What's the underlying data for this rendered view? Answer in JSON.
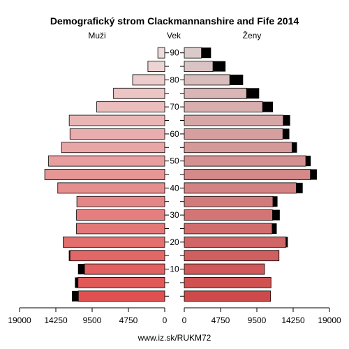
{
  "chart_data": {
    "type": "bar",
    "title": "Demografický strom Clackmannanshire and Fife 2014",
    "left_label": "Muži",
    "center_label": "Vek",
    "right_label": "Ženy",
    "footer": "www.iz.sk/RUKM72",
    "x_max": 19000,
    "x_ticks": [
      {
        "value": 19000,
        "label": "19000"
      },
      {
        "value": 14250,
        "label": "14250"
      },
      {
        "value": 9500,
        "label": "9500"
      },
      {
        "value": 4750,
        "label": "4750"
      },
      {
        "value": 0,
        "label": "0"
      }
    ],
    "age_groups": [
      "0-4",
      "5-9",
      "10-14",
      "15-19",
      "20-24",
      "25-29",
      "30-34",
      "35-39",
      "40-44",
      "45-49",
      "50-54",
      "55-59",
      "60-64",
      "65-69",
      "70-74",
      "75-79",
      "80-84",
      "85-89",
      "90+"
    ],
    "age_tick_labels": [
      {
        "index": 2,
        "label": "10"
      },
      {
        "index": 4,
        "label": "20"
      },
      {
        "index": 6,
        "label": "30"
      },
      {
        "index": 8,
        "label": "40"
      },
      {
        "index": 10,
        "label": "50"
      },
      {
        "index": 12,
        "label": "60"
      },
      {
        "index": 14,
        "label": "70"
      },
      {
        "index": 16,
        "label": "80"
      },
      {
        "index": 18,
        "label": "90"
      }
    ],
    "series": [
      {
        "name": "Muži",
        "values": [
          11300,
          11350,
          10500,
          12400,
          13300,
          11550,
          11550,
          11500,
          14000,
          15700,
          15200,
          13500,
          12400,
          12500,
          8900,
          6700,
          4200,
          2200,
          900
        ],
        "excess": [
          850,
          400,
          850,
          150,
          0,
          0,
          0,
          0,
          0,
          0,
          0,
          0,
          0,
          0,
          0,
          0,
          0,
          0,
          0
        ]
      },
      {
        "name": "Ženy",
        "values": [
          11300,
          11350,
          10500,
          12400,
          13300,
          11500,
          11550,
          11600,
          14650,
          16500,
          15900,
          14100,
          12900,
          12950,
          10250,
          8150,
          5950,
          3750,
          2250
        ],
        "excess": [
          0,
          0,
          0,
          0,
          250,
          600,
          950,
          600,
          850,
          850,
          650,
          650,
          850,
          900,
          1350,
          1650,
          1750,
          1650,
          1250
        ]
      }
    ],
    "colors": {
      "excess": "#000000",
      "outline": "#000000",
      "gradient_young": "#e05050",
      "gradient_old": "#eedcdc"
    }
  }
}
